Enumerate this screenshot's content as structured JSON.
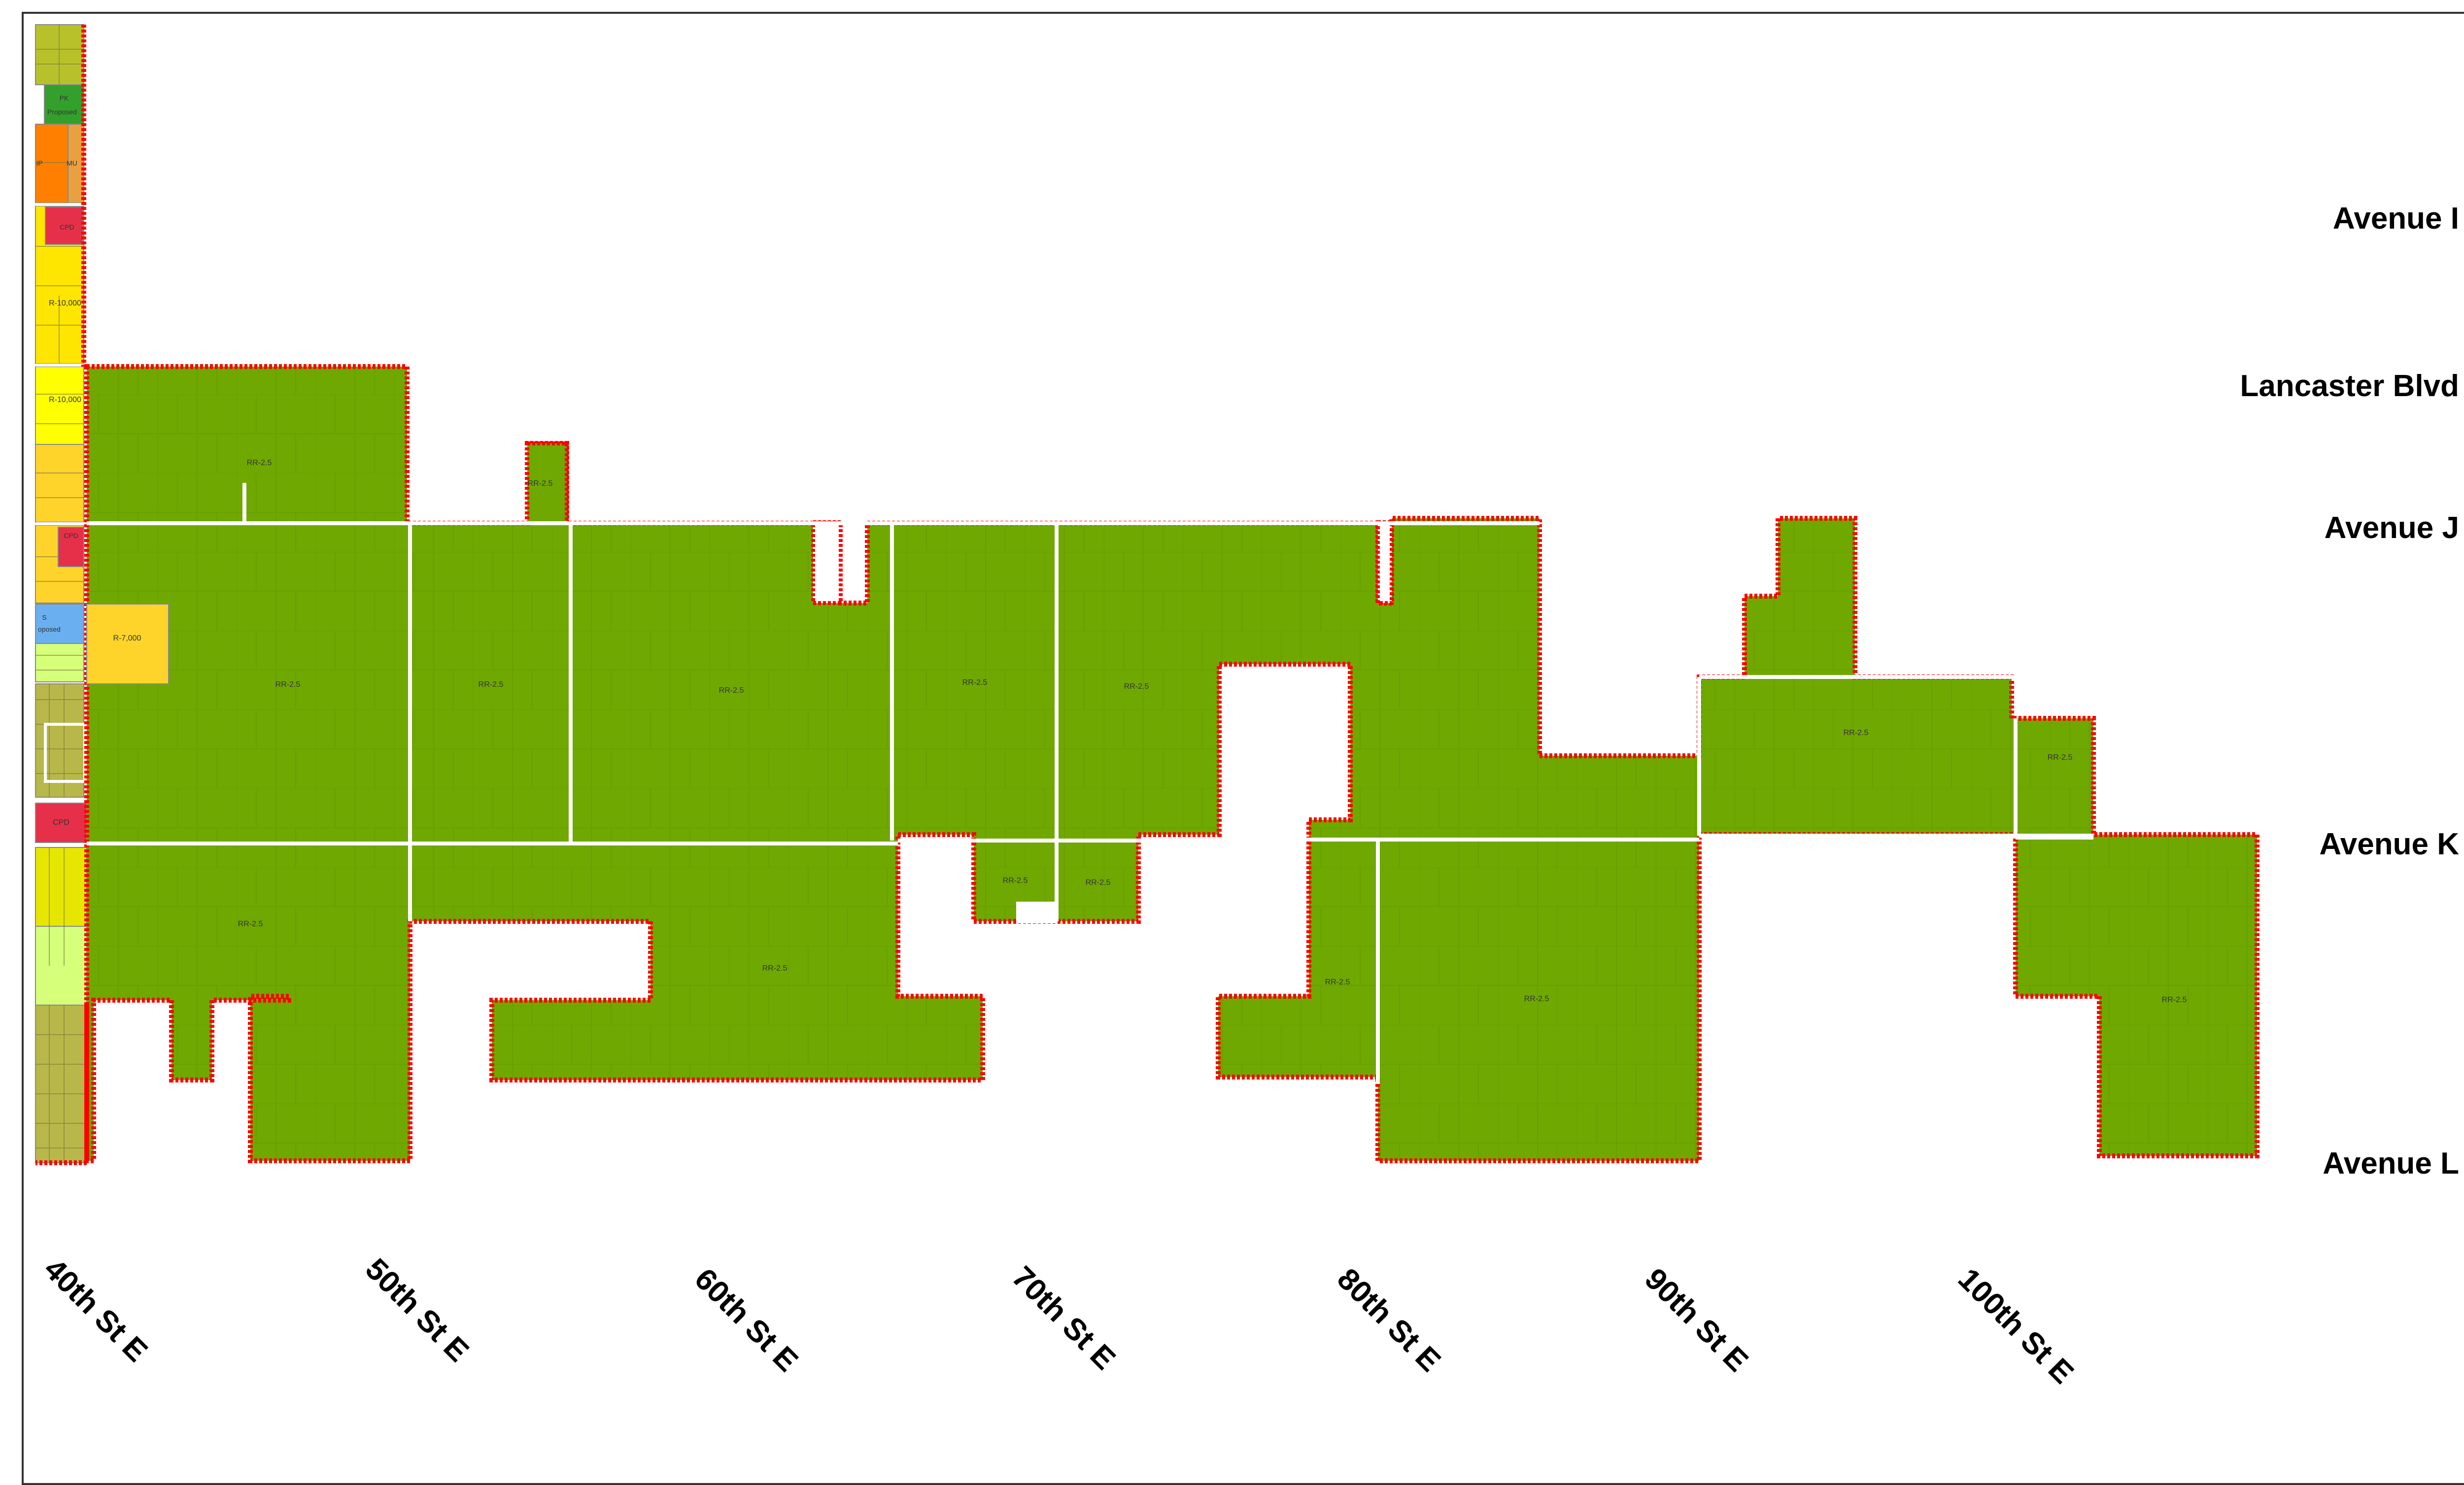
{
  "colors": {
    "rural_residential": "#6fa800",
    "boundary": "#ff0000",
    "parcel_line": "#5c9000",
    "road": "#ffffff",
    "mixed_use": "#b7c22a",
    "parks": "#33a02c",
    "industrial": "#ff7f00",
    "commercial": "#e6304a",
    "single_family": "#ffff00",
    "multi_family": "#ffd42a",
    "school": "#6ab0f0",
    "light_green": "#d6ff7a",
    "yellow_green": "#e6e600",
    "olive": "#b8b84a"
  },
  "streets_ew": [
    {
      "name": "Avenue I"
    },
    {
      "name": "Lancaster Blvd"
    },
    {
      "name": "Avenue J"
    },
    {
      "name": "Avenue K"
    },
    {
      "name": "Avenue L"
    }
  ],
  "streets_ns": [
    {
      "name": "40th St E"
    },
    {
      "name": "50th St E"
    },
    {
      "name": "60th St E"
    },
    {
      "name": "70th St E"
    },
    {
      "name": "80th St E"
    },
    {
      "name": "90th St E"
    },
    {
      "name": "100th St E"
    }
  ],
  "zones": {
    "rr": "RR-2.5",
    "r10000": "R-10,000",
    "r7000": "R-7,000",
    "cpd": "CPD",
    "pk": "PK",
    "proposed": "Proposed",
    "mu": "MU",
    "school": "S",
    "school_proposed": "oposed",
    "ip": "IP"
  }
}
